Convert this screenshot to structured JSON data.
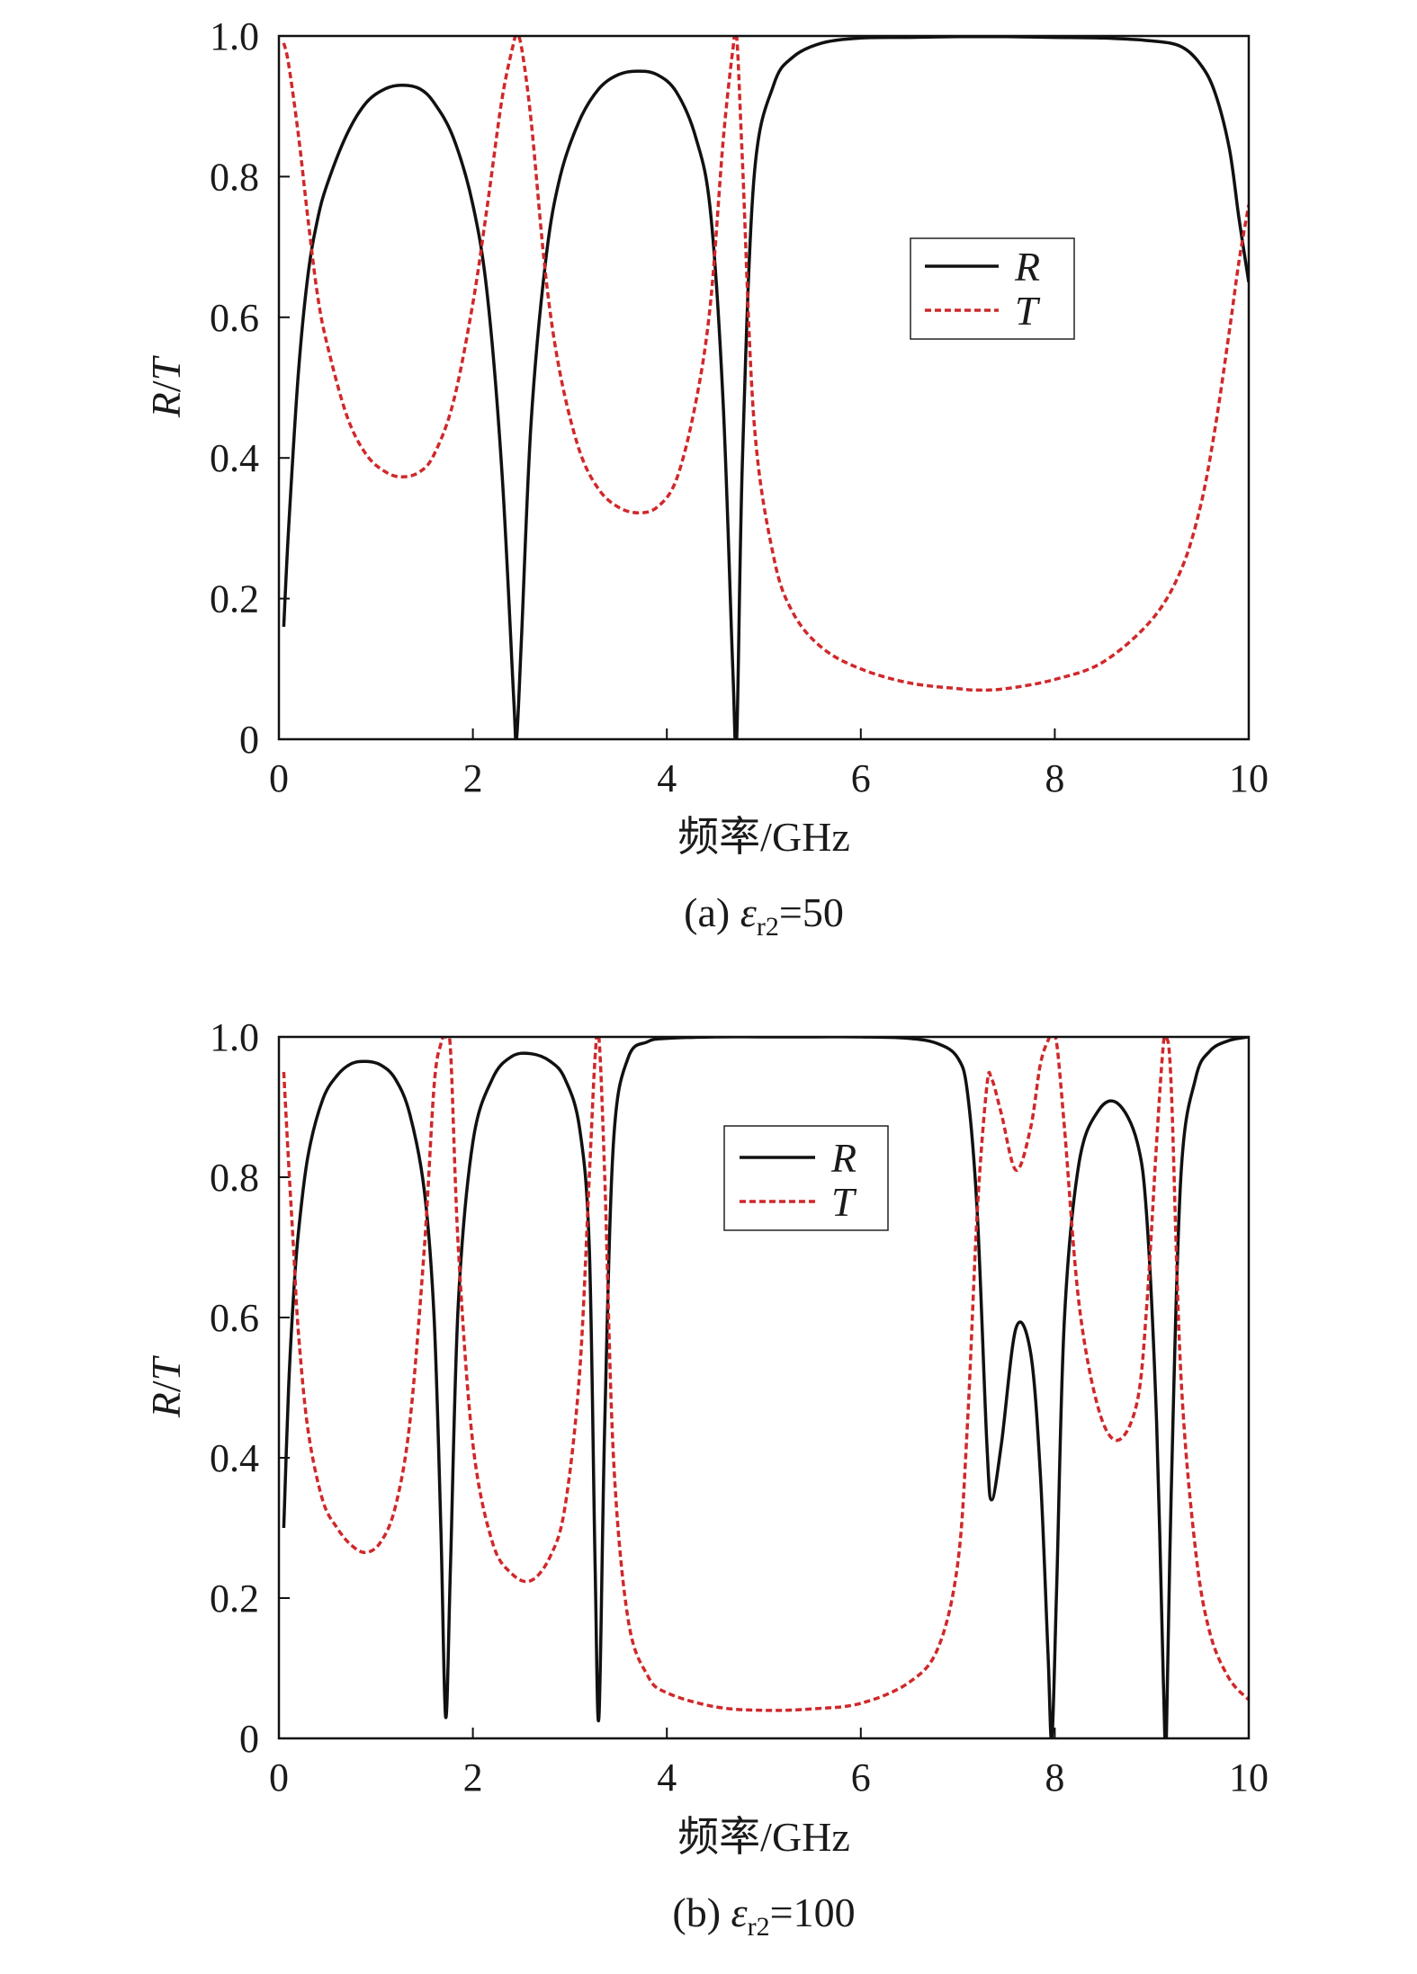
{
  "chart_data": [
    {
      "type": "line",
      "panel_label": "(a)",
      "caption": {
        "prefix": "(a) ",
        "symbol": "ε",
        "subscript": "r2",
        "suffix": "=50"
      },
      "xlabel": "频率/GHz",
      "ylabel": {
        "first": "R",
        "sep": "/",
        "second": "T"
      },
      "xlim": [
        0,
        10
      ],
      "ylim": [
        0,
        1.0
      ],
      "xticks": [
        0,
        2,
        4,
        6,
        8,
        10
      ],
      "xtick_labels": [
        "0",
        "2",
        "4",
        "6",
        "8",
        "10"
      ],
      "yticks": [
        0,
        0.2,
        0.4,
        0.6,
        0.8,
        1.0
      ],
      "ytick_labels": [
        "0",
        "0.2",
        "0.4",
        "0.6",
        "0.8",
        "1.0"
      ],
      "legend_position": "upper-right",
      "series": [
        {
          "name": "R",
          "color": "#111111",
          "style": "solid",
          "x": [
            0.05,
            0.1,
            0.2,
            0.3,
            0.4,
            0.5,
            0.7,
            0.9,
            1.1,
            1.27,
            1.45,
            1.6,
            1.8,
            2.0,
            2.15,
            2.3,
            2.42,
            2.45,
            2.5,
            2.6,
            2.75,
            2.9,
            3.1,
            3.3,
            3.5,
            3.7,
            3.9,
            4.1,
            4.3,
            4.45,
            4.58,
            4.68,
            4.72,
            4.78,
            4.9,
            5.1,
            5.3,
            5.6,
            6.0,
            6.5,
            7.0,
            7.5,
            8.0,
            8.5,
            9.0,
            9.3,
            9.5,
            9.65,
            9.8,
            9.9,
            10.0
          ],
          "y": [
            0.16,
            0.3,
            0.52,
            0.66,
            0.74,
            0.79,
            0.86,
            0.905,
            0.925,
            0.93,
            0.925,
            0.905,
            0.855,
            0.76,
            0.63,
            0.38,
            0.06,
            0.0,
            0.14,
            0.45,
            0.68,
            0.8,
            0.88,
            0.925,
            0.945,
            0.95,
            0.945,
            0.92,
            0.855,
            0.75,
            0.48,
            0.1,
            0.0,
            0.4,
            0.8,
            0.93,
            0.97,
            0.99,
            0.997,
            0.998,
            0.999,
            0.999,
            0.998,
            0.997,
            0.993,
            0.985,
            0.96,
            0.92,
            0.84,
            0.74,
            0.65
          ]
        },
        {
          "name": "T",
          "color": "#d0282a",
          "style": "dashed",
          "x": [
            0.05,
            0.1,
            0.2,
            0.3,
            0.4,
            0.5,
            0.7,
            0.9,
            1.1,
            1.27,
            1.45,
            1.6,
            1.8,
            2.0,
            2.15,
            2.3,
            2.42,
            2.45,
            2.5,
            2.6,
            2.75,
            2.9,
            3.1,
            3.3,
            3.5,
            3.7,
            3.9,
            4.1,
            4.3,
            4.45,
            4.58,
            4.68,
            4.72,
            4.78,
            4.9,
            5.1,
            5.3,
            5.6,
            6.0,
            6.5,
            7.0,
            7.2,
            7.5,
            8.0,
            8.5,
            9.0,
            9.3,
            9.5,
            9.65,
            9.8,
            9.9,
            10.0
          ],
          "y": [
            0.99,
            0.96,
            0.86,
            0.74,
            0.63,
            0.56,
            0.46,
            0.405,
            0.38,
            0.373,
            0.38,
            0.405,
            0.48,
            0.62,
            0.76,
            0.91,
            0.99,
            1.0,
            0.985,
            0.88,
            0.66,
            0.52,
            0.41,
            0.355,
            0.33,
            0.322,
            0.33,
            0.37,
            0.48,
            0.62,
            0.85,
            0.98,
            1.0,
            0.82,
            0.45,
            0.26,
            0.18,
            0.13,
            0.1,
            0.08,
            0.072,
            0.07,
            0.072,
            0.085,
            0.11,
            0.17,
            0.24,
            0.33,
            0.44,
            0.58,
            0.68,
            0.76
          ]
        }
      ]
    },
    {
      "type": "line",
      "panel_label": "(b)",
      "caption": {
        "prefix": "(b) ",
        "symbol": "ε",
        "subscript": "r2",
        "suffix": "=100"
      },
      "xlabel": "频率/GHz",
      "ylabel": {
        "first": "R",
        "sep": "/",
        "second": "T"
      },
      "xlim": [
        0,
        10
      ],
      "ylim": [
        0,
        1.0
      ],
      "xticks": [
        0,
        2,
        4,
        6,
        8,
        10
      ],
      "xtick_labels": [
        "0",
        "2",
        "4",
        "6",
        "8",
        "10"
      ],
      "yticks": [
        0,
        0.2,
        0.4,
        0.6,
        0.8,
        1.0
      ],
      "ytick_labels": [
        "0",
        "0.2",
        "0.4",
        "0.6",
        "0.8",
        "1.0"
      ],
      "legend_position": "upper-center",
      "series": [
        {
          "name": "R",
          "color": "#111111",
          "style": "solid",
          "x": [
            0.05,
            0.1,
            0.15,
            0.2,
            0.3,
            0.45,
            0.6,
            0.75,
            0.9,
            1.05,
            1.2,
            1.35,
            1.5,
            1.6,
            1.67,
            1.72,
            1.77,
            1.85,
            2.0,
            2.2,
            2.4,
            2.6,
            2.8,
            2.95,
            3.1,
            3.2,
            3.26,
            3.3,
            3.36,
            3.45,
            3.6,
            3.8,
            4.0,
            4.5,
            5.0,
            5.5,
            6.0,
            6.5,
            6.8,
            7.0,
            7.1,
            7.2,
            7.3,
            7.35,
            7.45,
            7.6,
            7.75,
            7.85,
            7.93,
            7.97,
            8.02,
            8.1,
            8.25,
            8.45,
            8.65,
            8.85,
            8.95,
            9.05,
            9.12,
            9.15,
            9.2,
            9.3,
            9.45,
            9.6,
            9.8,
            10.0
          ],
          "y": [
            0.3,
            0.5,
            0.63,
            0.72,
            0.83,
            0.91,
            0.945,
            0.962,
            0.965,
            0.96,
            0.94,
            0.89,
            0.78,
            0.6,
            0.3,
            0.03,
            0.25,
            0.62,
            0.85,
            0.94,
            0.972,
            0.976,
            0.965,
            0.94,
            0.87,
            0.7,
            0.25,
            0.03,
            0.45,
            0.85,
            0.97,
            0.993,
            0.998,
            1.0,
            1.0,
            1.0,
            1.0,
            0.998,
            0.99,
            0.97,
            0.92,
            0.75,
            0.42,
            0.34,
            0.42,
            0.585,
            0.55,
            0.38,
            0.12,
            0.0,
            0.22,
            0.6,
            0.82,
            0.895,
            0.905,
            0.85,
            0.74,
            0.45,
            0.08,
            0.0,
            0.35,
            0.8,
            0.94,
            0.98,
            0.995,
            1.0
          ]
        },
        {
          "name": "T",
          "color": "#d0282a",
          "style": "dashed",
          "x": [
            0.05,
            0.1,
            0.15,
            0.2,
            0.3,
            0.45,
            0.6,
            0.75,
            0.9,
            1.05,
            1.2,
            1.35,
            1.5,
            1.6,
            1.67,
            1.72,
            1.77,
            1.85,
            2.0,
            2.2,
            2.4,
            2.6,
            2.8,
            2.95,
            3.1,
            3.2,
            3.26,
            3.3,
            3.36,
            3.45,
            3.6,
            3.8,
            4.0,
            4.5,
            5.0,
            5.5,
            6.0,
            6.5,
            6.8,
            7.0,
            7.1,
            7.2,
            7.3,
            7.35,
            7.45,
            7.6,
            7.75,
            7.85,
            7.93,
            7.97,
            8.02,
            8.1,
            8.25,
            8.45,
            8.65,
            8.85,
            8.95,
            9.05,
            9.12,
            9.15,
            9.2,
            9.3,
            9.45,
            9.6,
            9.8,
            10.0
          ],
          "y": [
            0.95,
            0.82,
            0.7,
            0.58,
            0.44,
            0.34,
            0.3,
            0.275,
            0.265,
            0.28,
            0.33,
            0.45,
            0.7,
            0.93,
            0.99,
            1.0,
            0.98,
            0.7,
            0.42,
            0.28,
            0.235,
            0.225,
            0.26,
            0.33,
            0.52,
            0.8,
            0.97,
            1.0,
            0.8,
            0.4,
            0.17,
            0.09,
            0.065,
            0.045,
            0.04,
            0.042,
            0.05,
            0.08,
            0.13,
            0.25,
            0.45,
            0.75,
            0.93,
            0.94,
            0.89,
            0.81,
            0.87,
            0.96,
            0.995,
            1.0,
            0.99,
            0.87,
            0.62,
            0.47,
            0.425,
            0.48,
            0.62,
            0.85,
            0.99,
            1.0,
            0.93,
            0.52,
            0.27,
            0.15,
            0.085,
            0.055
          ]
        }
      ]
    }
  ]
}
